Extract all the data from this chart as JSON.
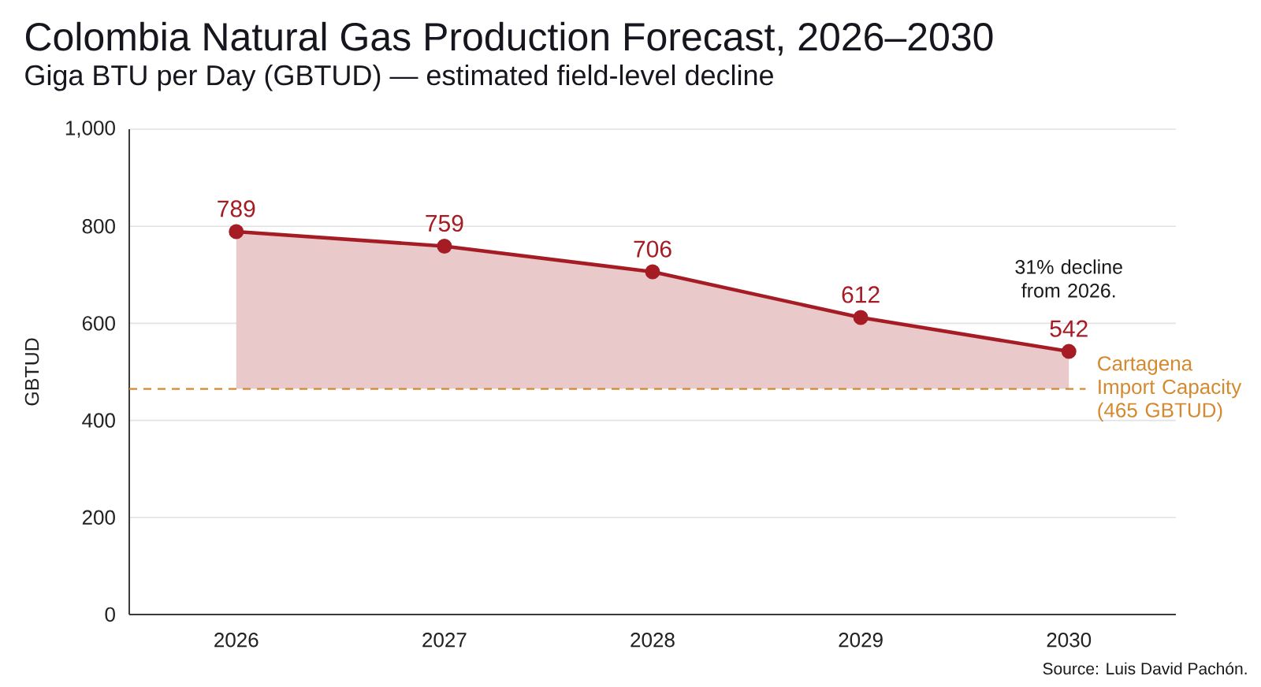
{
  "chart_data": {
    "type": "area",
    "title": "Colombia Natural Gas Production Forecast, 2026–2030",
    "subtitle": "Giga BTU per Day (GBTUD) — estimated field-level decline",
    "ylabel": "GBTUD",
    "categories": [
      "2026",
      "2027",
      "2028",
      "2029",
      "2030"
    ],
    "series": [
      {
        "color": "#a51c24",
        "values": [
          789,
          759,
          706,
          612,
          542
        ]
      }
    ],
    "ylim": [
      0,
      1000
    ],
    "yticks": [
      0,
      200,
      400,
      600,
      800,
      {
        "value": 1000,
        "label": "1,000"
      }
    ],
    "grid": "y",
    "marker": "circle",
    "line_style": "solid",
    "data_labels": true,
    "ref_lines": [
      {
        "axis": "y",
        "value": 465,
        "label": "Cartagena Import Capacity (465 GBTUD)",
        "color": "#d4892f",
        "line_style": "dashed"
      }
    ],
    "annotations": [
      {
        "text": "31% decline from 2026.",
        "x": "2030",
        "y": 542
      },
      "Source: Luis David Pachón."
    ]
  }
}
